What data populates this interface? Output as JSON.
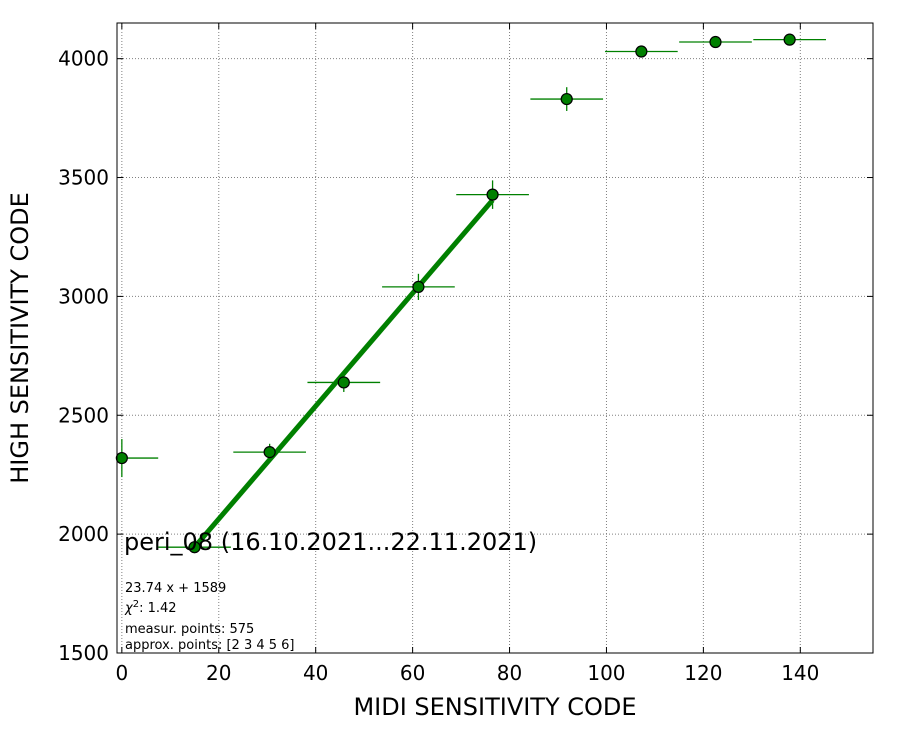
{
  "chart_data": {
    "type": "scatter",
    "title": "",
    "xlabel": "MIDI SENSITIVITY CODE",
    "ylabel": "HIGH SENSITIVITY CODE",
    "xlim": [
      -1,
      155
    ],
    "ylim": [
      1500,
      4150
    ],
    "grid": true,
    "x_ticks": [
      0,
      20,
      40,
      60,
      80,
      100,
      120,
      140
    ],
    "y_ticks": [
      1500,
      2000,
      2500,
      3000,
      3500,
      4000
    ],
    "x_tick_labels": [
      "0",
      "20",
      "40",
      "60",
      "80",
      "100",
      "120",
      "140"
    ],
    "y_tick_labels": [
      "1500",
      "2000",
      "2500",
      "3000",
      "3500",
      "4000"
    ],
    "colors": {
      "points": "#008000",
      "fit_line": "#008000",
      "grid": "#808080"
    },
    "series": [
      {
        "values": [
          {
            "x": 0,
            "y": 2320,
            "xerr": [
              0,
              7.5
            ],
            "yerr": 80
          },
          {
            "x": 15,
            "y": 1945,
            "xerr": 7.5,
            "yerr": 25
          },
          {
            "x": 30.5,
            "y": 2345,
            "xerr": 7.5,
            "yerr": 35
          },
          {
            "x": 45.8,
            "y": 2638,
            "xerr": 7.5,
            "yerr": 40
          },
          {
            "x": 61.2,
            "y": 3040,
            "xerr": 7.5,
            "yerr": 55
          },
          {
            "x": 76.5,
            "y": 3428,
            "xerr": 7.5,
            "yerr": 60
          },
          {
            "x": 91.8,
            "y": 3830,
            "xerr": 7.5,
            "yerr": 50
          },
          {
            "x": 107.2,
            "y": 4030,
            "xerr": 7.5,
            "yerr": 15
          },
          {
            "x": 122.5,
            "y": 4070,
            "xerr": 7.5,
            "yerr": 10
          },
          {
            "x": 137.8,
            "y": 4080,
            "xerr": 7.5,
            "yerr": 10
          }
        ]
      }
    ],
    "fit": {
      "slope": 23.74,
      "intercept": 1589,
      "x_range": [
        15,
        76.5
      ]
    },
    "annotations": {
      "title": "peri_08 (16.10.2021...22.11.2021)",
      "equation": "23.74 x + 1589",
      "chi2_symbol": "χ",
      "chi2_power": "2",
      "chi2_value": ": 1.42",
      "measur_points": "measur. points: 575",
      "approx_points": "approx. points: [2 3 4 5 6]"
    }
  }
}
